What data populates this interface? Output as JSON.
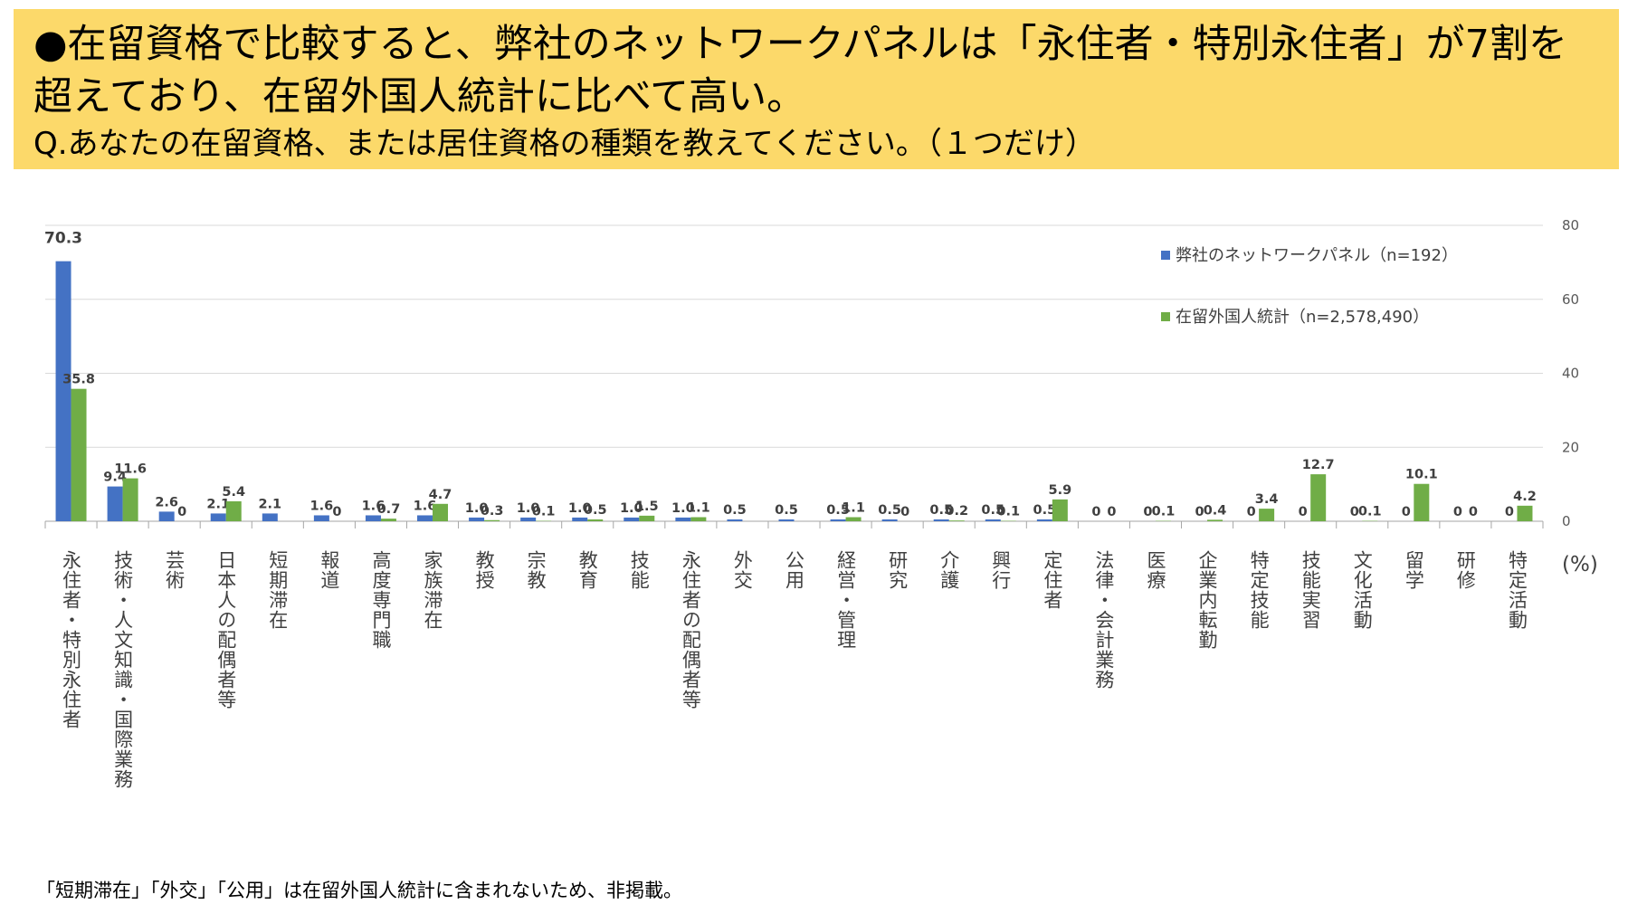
{
  "header": {
    "line1": "●在留資格で比較すると、弊社のネットワークパネルは「永住者・特別永住者」が7割を",
    "line2": "超えており、在留外国人統計に比べて高い。",
    "question": "Q.あなたの在留資格、または居住資格の種類を教えてください。（１つだけ）"
  },
  "footnote": "「短期滞在」「外交」「公用」は在留外国人統計に含まれないため、非掲載。",
  "colors": {
    "panel": "#4472c4",
    "stats": "#70ad47",
    "header_bg": "#fcd96a"
  },
  "chart_data": {
    "type": "bar",
    "ylim": [
      0,
      80
    ],
    "yticks": [
      0,
      20,
      40,
      60,
      80
    ],
    "unit": "(%)",
    "legend_position": "top-right",
    "grid": true,
    "categories": [
      "永住者・特別永住者",
      "技術・人文知識・国際業務",
      "芸術",
      "日本人の配偶者等",
      "短期滞在",
      "報道",
      "高度専門職",
      "家族滞在",
      "教授",
      "宗教",
      "教育",
      "技能",
      "永住者の配偶者等",
      "外交",
      "公用",
      "経営・管理",
      "研究",
      "介護",
      "興行",
      "定住者",
      "法律・会計業務",
      "医療",
      "企業内転勤",
      "特定技能",
      "技能実習",
      "文化活動",
      "留学",
      "研修",
      "特定活動"
    ],
    "series": [
      {
        "name": "弊社のネットワークパネル（n=192）",
        "values": [
          70.3,
          9.4,
          2.6,
          2.1,
          2.1,
          1.6,
          1.6,
          1.6,
          1.0,
          1.0,
          1.0,
          1.0,
          1.0,
          0.5,
          0.5,
          0.5,
          0.5,
          0.5,
          0.5,
          0.5,
          0,
          0,
          0,
          0,
          0,
          0,
          0,
          0,
          0
        ],
        "labels": [
          "70.3",
          "9.4",
          "2.6",
          "2.1",
          "2.1",
          "1.6",
          "1.6",
          "1.6",
          "1.0",
          "1.0",
          "1.0",
          "1.0",
          "1.0",
          "0.5",
          "0.5",
          "0.5",
          "0.5",
          "0.5",
          "0.5",
          "0.5",
          "0",
          "0",
          "0",
          "0",
          "0",
          "0",
          "0",
          "0",
          "0"
        ]
      },
      {
        "name": "在留外国人統計（n=2,578,490）",
        "values": [
          35.8,
          11.6,
          0,
          5.4,
          null,
          0,
          0.7,
          4.7,
          0.3,
          0.1,
          0.5,
          1.5,
          1.1,
          null,
          null,
          1.1,
          0,
          0.2,
          0.1,
          5.9,
          0,
          0.1,
          0.4,
          3.4,
          12.7,
          0.1,
          10.1,
          0,
          4.2
        ],
        "labels": [
          "35.8",
          "11.6",
          "0",
          "5.4",
          null,
          "0",
          "0.7",
          "4.7",
          "0.3",
          "0.1",
          "0.5",
          "1.5",
          "1.1",
          null,
          null,
          "1.1",
          "0",
          "0.2",
          "0.1",
          "5.9",
          "0",
          "0.1",
          "0.4",
          "3.4",
          "12.7",
          "0.1",
          "10.1",
          "0",
          "4.2"
        ]
      }
    ]
  }
}
